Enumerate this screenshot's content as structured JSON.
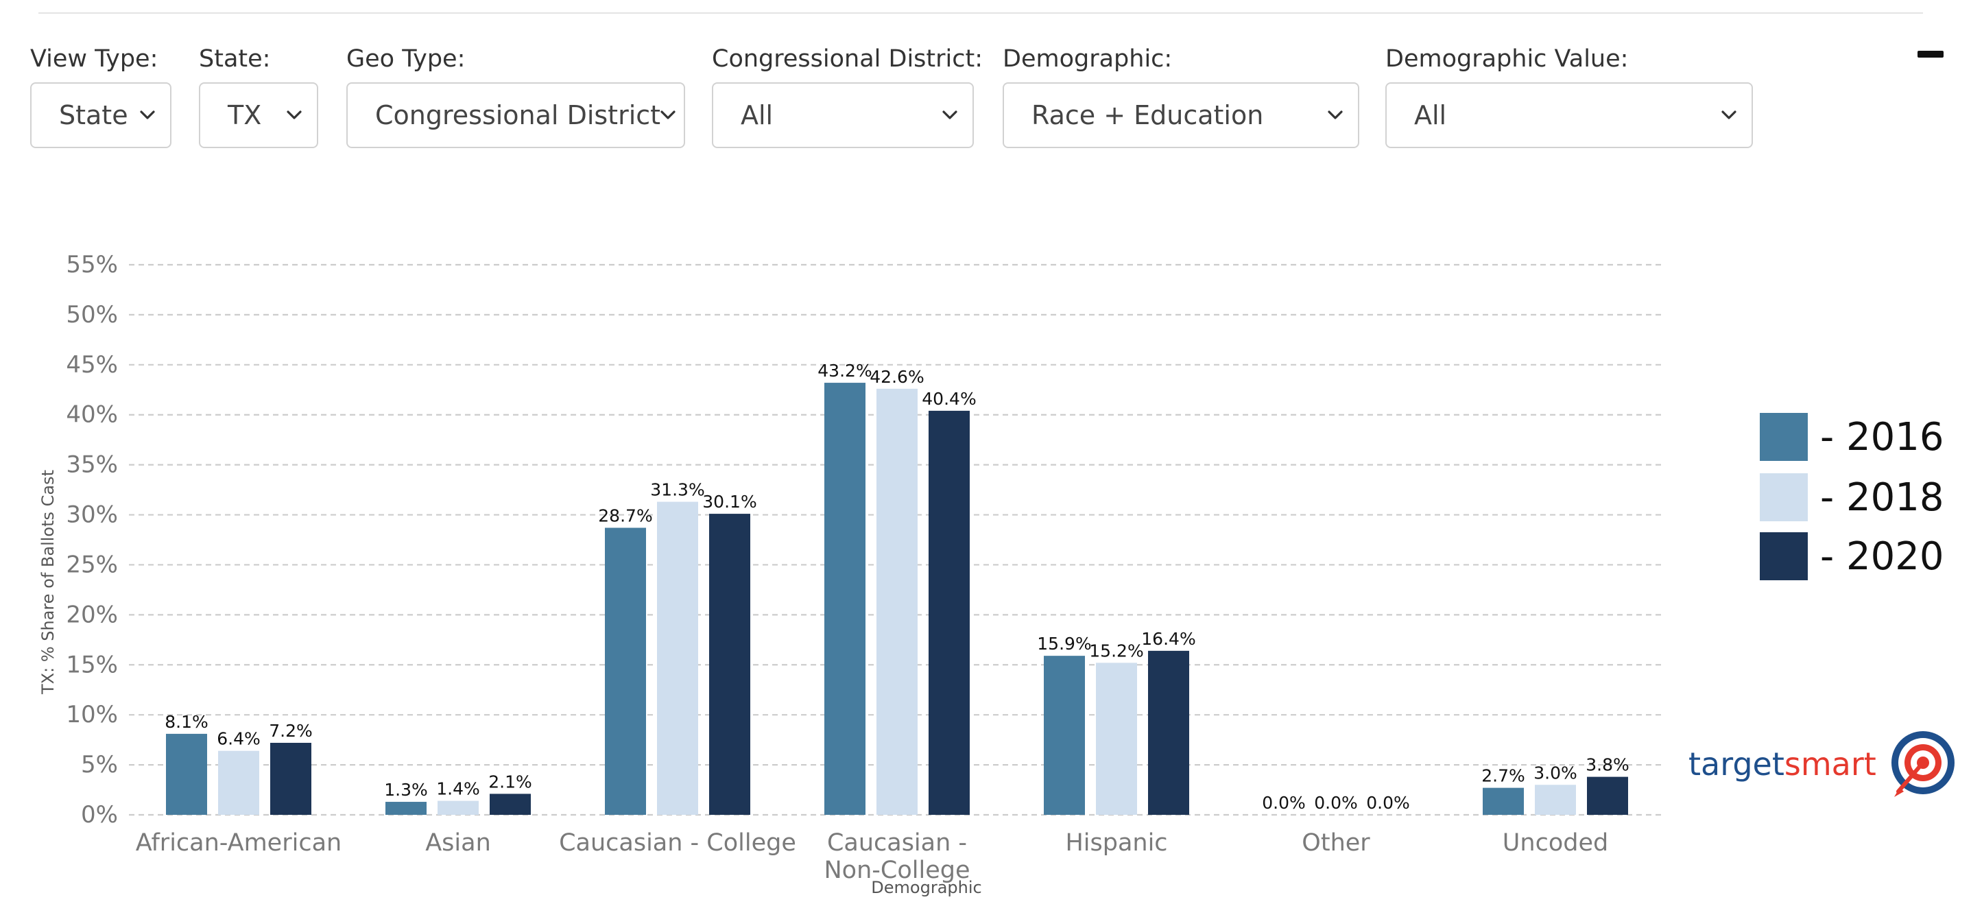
{
  "filters": [
    {
      "label": "View Type:",
      "value": "State"
    },
    {
      "label": "State:",
      "value": "TX"
    },
    {
      "label": "Geo Type:",
      "value": "Congressional District"
    },
    {
      "label": "Congressional District:",
      "value": "All"
    },
    {
      "label": "Demographic:",
      "value": "Race + Education"
    },
    {
      "label": "Demographic Value:",
      "value": "All"
    }
  ],
  "brand": {
    "part1": "target",
    "part2": "smart"
  },
  "colors": {
    "2016": "#467c9e",
    "2018": "#cfdeee",
    "2020": "#1d3556",
    "grid": "#cccccc",
    "brand_blue": "#1e4f8c",
    "brand_red": "#e5392d"
  },
  "chart_data": {
    "type": "bar",
    "title": "",
    "xlabel": "Demographic",
    "ylabel": "TX: % Share of Ballots Cast",
    "ylim": [
      0,
      55
    ],
    "yticks": [
      "0%",
      "5%",
      "10%",
      "15%",
      "20%",
      "25%",
      "30%",
      "35%",
      "40%",
      "45%",
      "50%",
      "55%"
    ],
    "grid": true,
    "legend_position": "right",
    "categories": [
      "African-American",
      "Asian",
      "Caucasian - College",
      "Caucasian - Non-College",
      "Hispanic",
      "Other",
      "Uncoded"
    ],
    "category_labels": [
      [
        "African-American"
      ],
      [
        "Asian"
      ],
      [
        "Caucasian - College"
      ],
      [
        "Caucasian -",
        "Non-College"
      ],
      [
        "Hispanic"
      ],
      [
        "Other"
      ],
      [
        "Uncoded"
      ]
    ],
    "series": [
      {
        "name": "- 2016",
        "values": [
          8.1,
          1.3,
          28.7,
          43.2,
          15.9,
          0.0,
          2.7
        ]
      },
      {
        "name": "- 2018",
        "values": [
          6.4,
          1.4,
          31.3,
          42.6,
          15.2,
          0.0,
          3.0
        ]
      },
      {
        "name": "- 2020",
        "values": [
          7.2,
          2.1,
          30.1,
          40.4,
          16.4,
          0.0,
          3.8
        ]
      }
    ],
    "value_labels": [
      [
        "8.1%",
        "1.3%",
        "28.7%",
        "43.2%",
        "15.9%",
        "0.0%",
        "2.7%"
      ],
      [
        "6.4%",
        "1.4%",
        "31.3%",
        "42.6%",
        "15.2%",
        "0.0%",
        "3.0%"
      ],
      [
        "7.2%",
        "2.1%",
        "30.1%",
        "40.4%",
        "16.4%",
        "0.0%",
        "3.8%"
      ]
    ]
  }
}
